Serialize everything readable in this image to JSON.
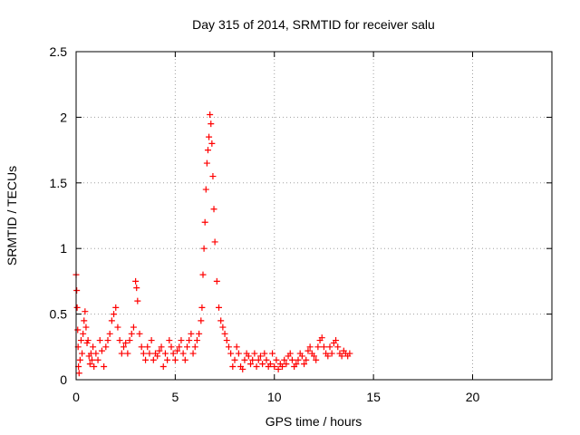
{
  "colors": {
    "series": "#ff0000",
    "axis": "#000000",
    "grid": "#a0a0a0",
    "background": "#ffffff"
  },
  "chart_data": {
    "type": "scatter",
    "marker": "+",
    "title": "Day 315 of 2014, SRMTID for receiver salu",
    "xlabel": "GPS time / hours",
    "ylabel": "SRMTID / TECUs",
    "xlim": [
      0,
      24
    ],
    "ylim": [
      0,
      2.5
    ],
    "grid": true,
    "x_ticks": [
      0,
      5,
      10,
      15,
      20
    ],
    "x_tick_labels": [
      "0",
      "5",
      "10",
      "15",
      "20"
    ],
    "y_ticks": [
      0,
      0.5,
      1,
      1.5,
      2,
      2.5
    ],
    "y_tick_labels": [
      "0",
      "0.5",
      "1",
      "1.5",
      "2",
      "2.5"
    ],
    "series": [
      {
        "name": "salu",
        "color": "#ff0000",
        "x": [
          0.0,
          0.03,
          0.05,
          0.08,
          0.1,
          0.12,
          0.15,
          0.2,
          0.25,
          0.3,
          0.35,
          0.4,
          0.45,
          0.5,
          0.55,
          0.6,
          0.65,
          0.7,
          0.75,
          0.8,
          0.85,
          0.9,
          1.0,
          1.1,
          1.2,
          1.3,
          1.4,
          1.5,
          1.6,
          1.7,
          1.8,
          1.9,
          2.0,
          2.1,
          2.2,
          2.3,
          2.4,
          2.5,
          2.6,
          2.7,
          2.8,
          2.9,
          3.0,
          3.05,
          3.1,
          3.2,
          3.3,
          3.4,
          3.5,
          3.6,
          3.7,
          3.8,
          3.9,
          4.0,
          4.1,
          4.2,
          4.3,
          4.4,
          4.5,
          4.6,
          4.7,
          4.8,
          4.9,
          5.0,
          5.1,
          5.2,
          5.3,
          5.4,
          5.5,
          5.6,
          5.7,
          5.8,
          5.9,
          6.0,
          6.1,
          6.2,
          6.3,
          6.35,
          6.4,
          6.45,
          6.5,
          6.55,
          6.6,
          6.65,
          6.7,
          6.75,
          6.8,
          6.85,
          6.9,
          6.95,
          7.0,
          7.1,
          7.2,
          7.3,
          7.4,
          7.5,
          7.6,
          7.7,
          7.8,
          7.9,
          8.0,
          8.1,
          8.2,
          8.3,
          8.4,
          8.5,
          8.6,
          8.7,
          8.8,
          8.9,
          9.0,
          9.1,
          9.2,
          9.3,
          9.4,
          9.5,
          9.6,
          9.7,
          9.8,
          9.9,
          10.0,
          10.1,
          10.2,
          10.3,
          10.4,
          10.5,
          10.6,
          10.7,
          10.8,
          10.9,
          11.0,
          11.1,
          11.2,
          11.3,
          11.4,
          11.5,
          11.6,
          11.7,
          11.8,
          11.9,
          12.0,
          12.1,
          12.2,
          12.3,
          12.4,
          12.5,
          12.6,
          12.7,
          12.8,
          12.9,
          13.0,
          13.1,
          13.2,
          13.3,
          13.4,
          13.5,
          13.6,
          13.7,
          13.8
        ],
        "y": [
          0.8,
          0.68,
          0.55,
          0.38,
          0.25,
          0.1,
          0.05,
          0.15,
          0.3,
          0.2,
          0.35,
          0.45,
          0.52,
          0.4,
          0.28,
          0.3,
          0.18,
          0.12,
          0.2,
          0.15,
          0.25,
          0.1,
          0.2,
          0.15,
          0.3,
          0.22,
          0.1,
          0.25,
          0.3,
          0.35,
          0.45,
          0.5,
          0.55,
          0.4,
          0.3,
          0.2,
          0.25,
          0.28,
          0.2,
          0.3,
          0.35,
          0.4,
          0.75,
          0.7,
          0.6,
          0.35,
          0.25,
          0.2,
          0.15,
          0.25,
          0.2,
          0.3,
          0.15,
          0.2,
          0.18,
          0.22,
          0.25,
          0.1,
          0.2,
          0.15,
          0.3,
          0.25,
          0.2,
          0.15,
          0.22,
          0.25,
          0.3,
          0.2,
          0.15,
          0.25,
          0.3,
          0.35,
          0.2,
          0.25,
          0.3,
          0.35,
          0.45,
          0.55,
          0.8,
          1.0,
          1.2,
          1.45,
          1.65,
          1.75,
          1.85,
          2.02,
          1.95,
          1.8,
          1.55,
          1.3,
          1.05,
          0.75,
          0.55,
          0.45,
          0.4,
          0.35,
          0.3,
          0.25,
          0.2,
          0.1,
          0.15,
          0.25,
          0.2,
          0.1,
          0.08,
          0.15,
          0.2,
          0.18,
          0.12,
          0.15,
          0.2,
          0.1,
          0.15,
          0.18,
          0.12,
          0.2,
          0.15,
          0.1,
          0.12,
          0.2,
          0.1,
          0.15,
          0.08,
          0.12,
          0.1,
          0.15,
          0.12,
          0.18,
          0.2,
          0.15,
          0.1,
          0.12,
          0.15,
          0.2,
          0.18,
          0.12,
          0.15,
          0.22,
          0.25,
          0.2,
          0.18,
          0.15,
          0.25,
          0.3,
          0.32,
          0.25,
          0.2,
          0.18,
          0.25,
          0.2,
          0.28,
          0.3,
          0.25,
          0.2,
          0.18,
          0.22,
          0.2,
          0.18,
          0.2
        ]
      }
    ]
  }
}
